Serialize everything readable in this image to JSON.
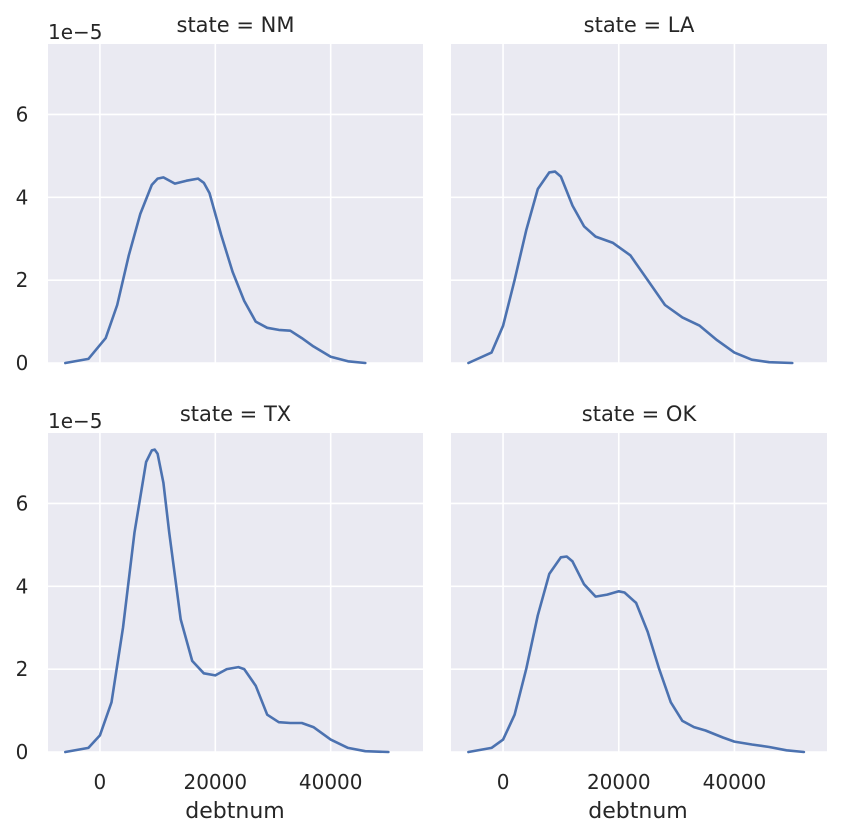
{
  "chart_data": {
    "type": "line",
    "facet_by": "state",
    "xlabel": "debtnum",
    "ylabel": "",
    "y_offset_label": "1e−5",
    "xlim": [
      -9000,
      56000
    ],
    "ylim": [
      0,
      7.7
    ],
    "y_scale_factor": 1e-05,
    "x_ticks": [
      0,
      20000,
      40000
    ],
    "x_tick_labels": [
      "0",
      "20000",
      "40000"
    ],
    "y_ticks": [
      0,
      2,
      4,
      6
    ],
    "y_tick_labels": [
      "0",
      "2",
      "4",
      "6"
    ],
    "grid": true,
    "color": "#4c72b0",
    "panels": [
      {
        "title": "state = NM",
        "x": [
          -6000,
          -2000,
          1000,
          3000,
          5000,
          7000,
          9000,
          10000,
          11000,
          13000,
          15000,
          17000,
          18000,
          19000,
          20000,
          21000,
          23000,
          25000,
          27000,
          29000,
          31000,
          33000,
          35000,
          37000,
          40000,
          43000,
          46000
        ],
        "y": [
          0.0,
          0.1,
          0.6,
          1.4,
          2.6,
          3.6,
          4.3,
          4.45,
          4.48,
          4.33,
          4.4,
          4.45,
          4.35,
          4.1,
          3.6,
          3.1,
          2.2,
          1.5,
          1.0,
          0.85,
          0.8,
          0.78,
          0.6,
          0.4,
          0.15,
          0.04,
          0.0
        ]
      },
      {
        "title": "state = LA",
        "x": [
          -6000,
          -2000,
          0,
          2000,
          4000,
          6000,
          8000,
          9000,
          10000,
          12000,
          14000,
          16000,
          19000,
          22000,
          25000,
          28000,
          31000,
          34000,
          37000,
          40000,
          43000,
          46000,
          50000
        ],
        "y": [
          0.0,
          0.25,
          0.9,
          2.0,
          3.2,
          4.2,
          4.6,
          4.62,
          4.5,
          3.8,
          3.3,
          3.05,
          2.9,
          2.6,
          2.0,
          1.4,
          1.1,
          0.9,
          0.55,
          0.25,
          0.08,
          0.02,
          0.0
        ]
      },
      {
        "title": "state = TX",
        "x": [
          -6000,
          -2000,
          0,
          2000,
          4000,
          6000,
          8000,
          9000,
          9500,
          10000,
          11000,
          12000,
          14000,
          16000,
          18000,
          20000,
          22000,
          24000,
          25000,
          27000,
          29000,
          31000,
          33000,
          35000,
          37000,
          40000,
          43000,
          46000,
          50000
        ],
        "y": [
          0.0,
          0.1,
          0.4,
          1.2,
          3.0,
          5.3,
          7.0,
          7.28,
          7.3,
          7.2,
          6.5,
          5.3,
          3.2,
          2.2,
          1.9,
          1.85,
          2.0,
          2.05,
          2.0,
          1.6,
          0.9,
          0.72,
          0.7,
          0.7,
          0.6,
          0.3,
          0.1,
          0.02,
          0.0
        ]
      },
      {
        "title": "state = OK",
        "x": [
          -6000,
          -2000,
          0,
          2000,
          4000,
          6000,
          8000,
          10000,
          11000,
          12000,
          14000,
          16000,
          18000,
          20000,
          21000,
          23000,
          25000,
          27000,
          29000,
          31000,
          33000,
          35000,
          38000,
          40000,
          43000,
          46000,
          49000,
          52000
        ],
        "y": [
          0.0,
          0.1,
          0.3,
          0.9,
          2.0,
          3.3,
          4.3,
          4.7,
          4.72,
          4.6,
          4.05,
          3.75,
          3.8,
          3.88,
          3.85,
          3.6,
          2.9,
          2.0,
          1.2,
          0.75,
          0.6,
          0.52,
          0.35,
          0.25,
          0.18,
          0.12,
          0.04,
          0.0
        ]
      }
    ]
  }
}
